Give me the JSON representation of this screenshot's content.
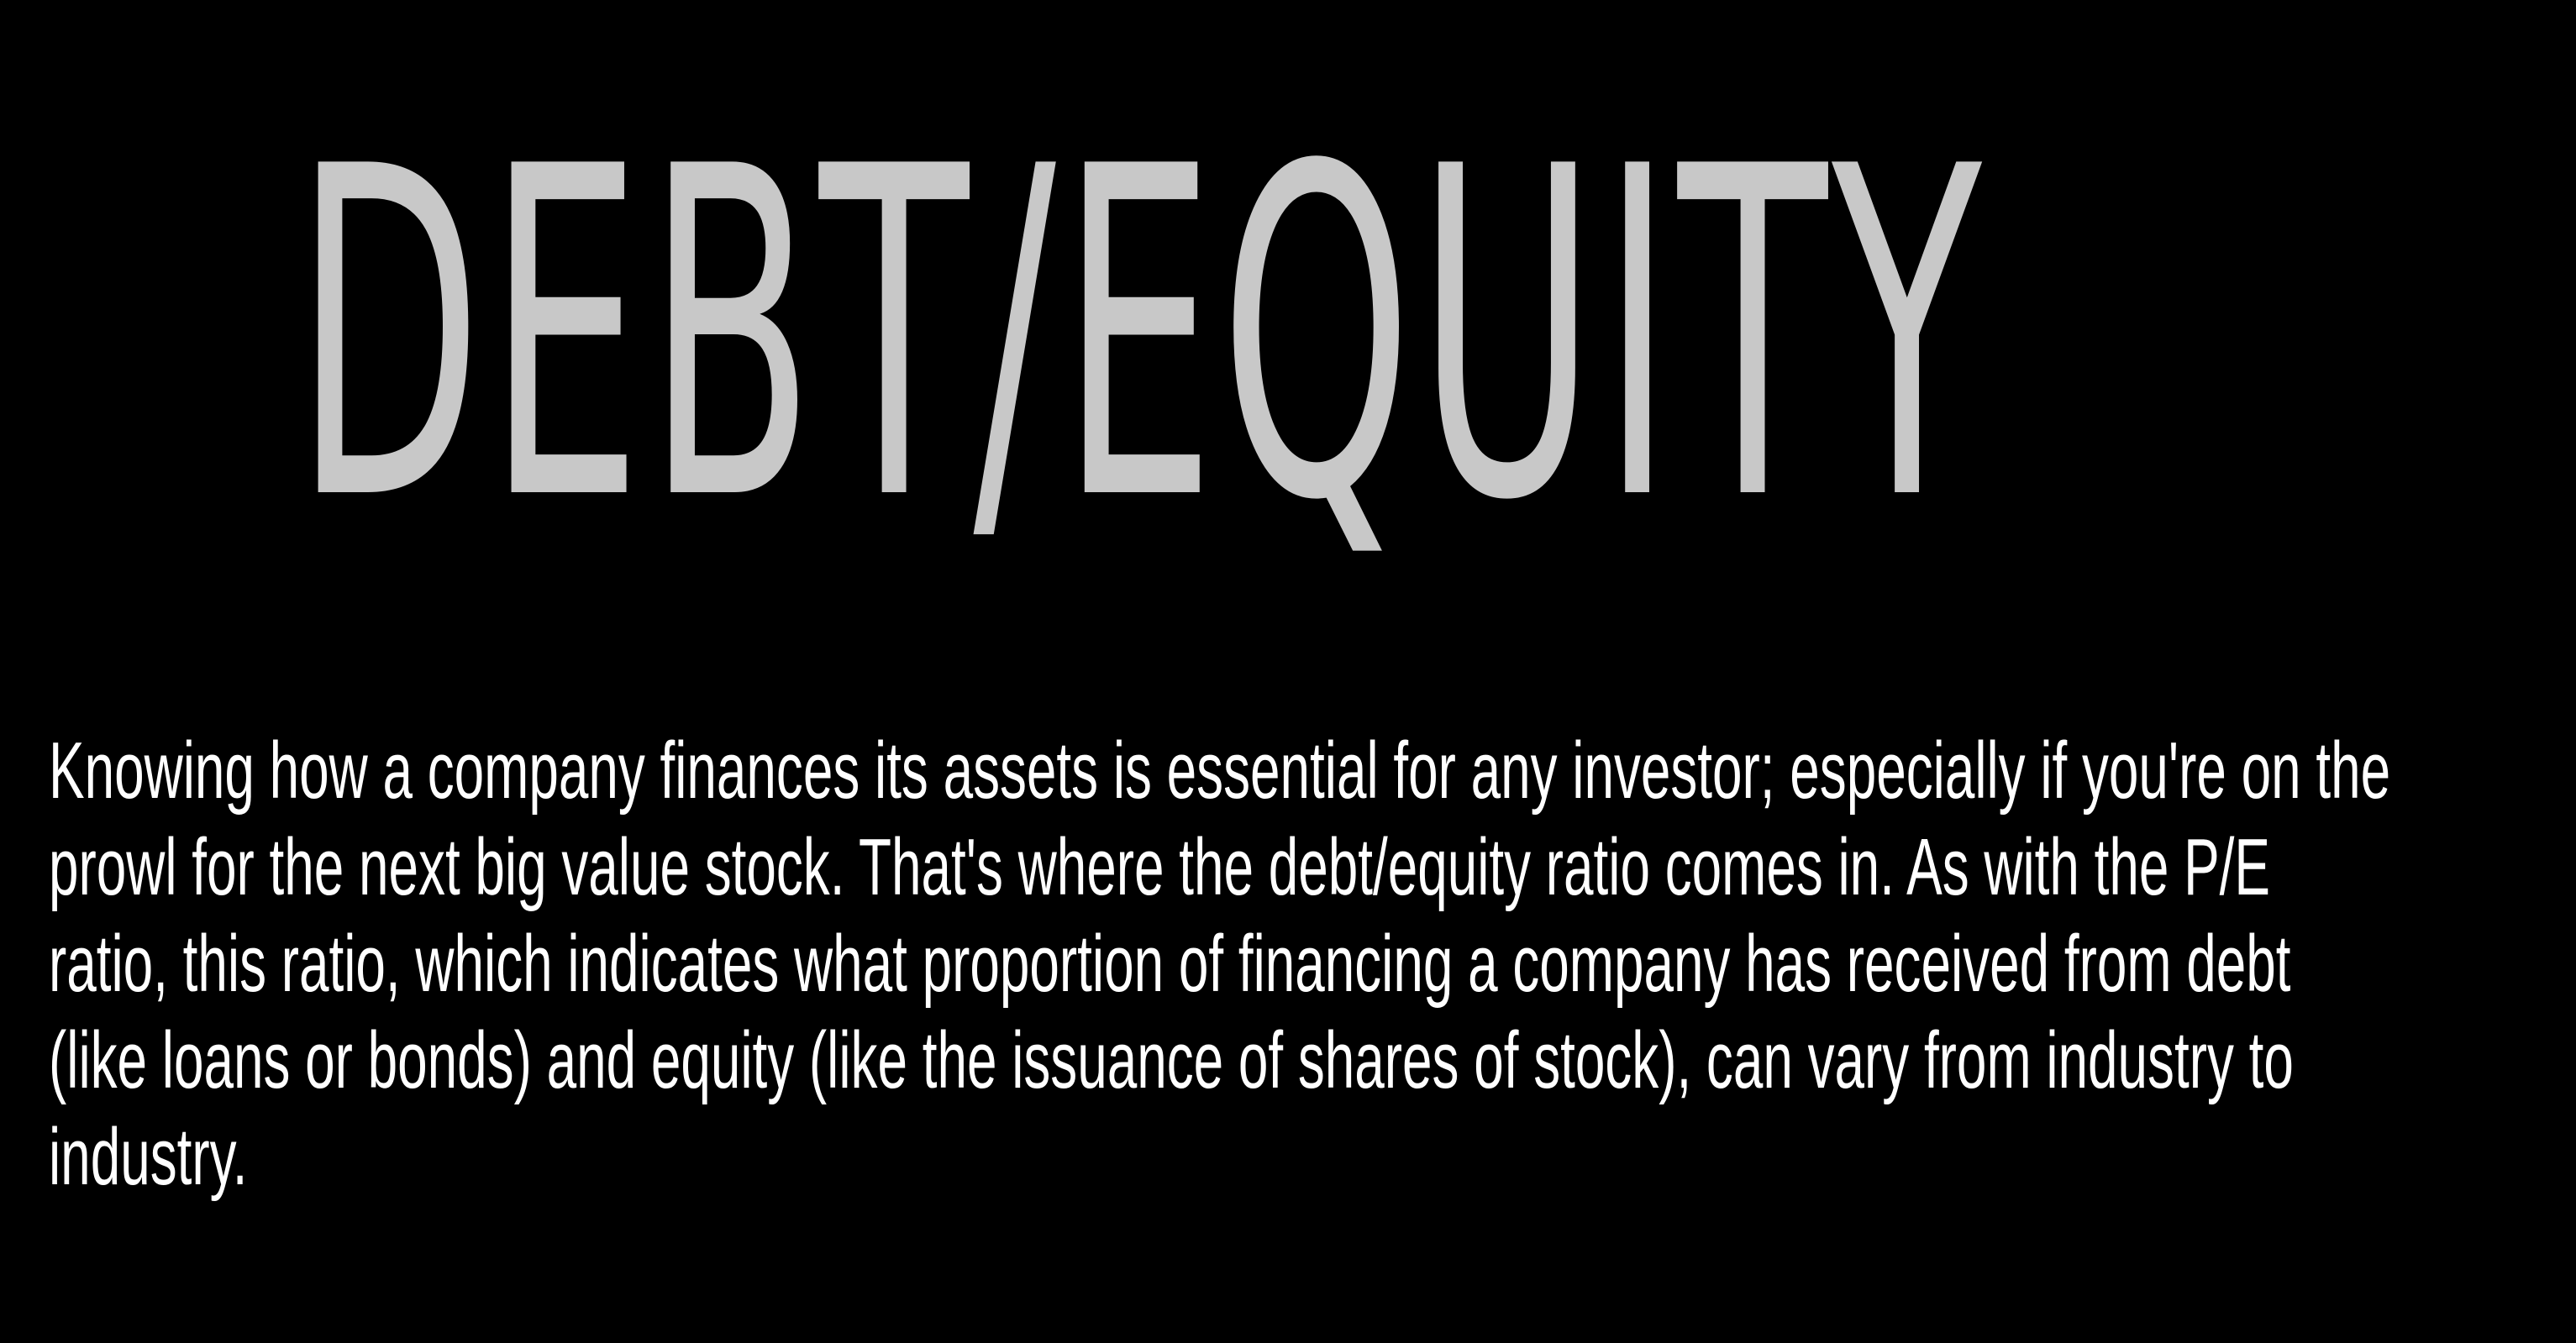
{
  "slide": {
    "title": "DEBT/EQUITY",
    "body_lines": [
      "Knowing how a company finances its assets is essential for any investor; especially if you're on the",
      "prowl for the next big value stock. That's where the debt/equity ratio comes in. As with the P/E",
      "ratio, this ratio, which indicates what proportion of financing a company has received from debt",
      "(like loans or bonds) and equity (like the issuance of shares of stock), can vary from industry to",
      "industry."
    ]
  },
  "colors": {
    "background": "#000000",
    "title": "#c8c8c8",
    "body": "#ffffff"
  }
}
